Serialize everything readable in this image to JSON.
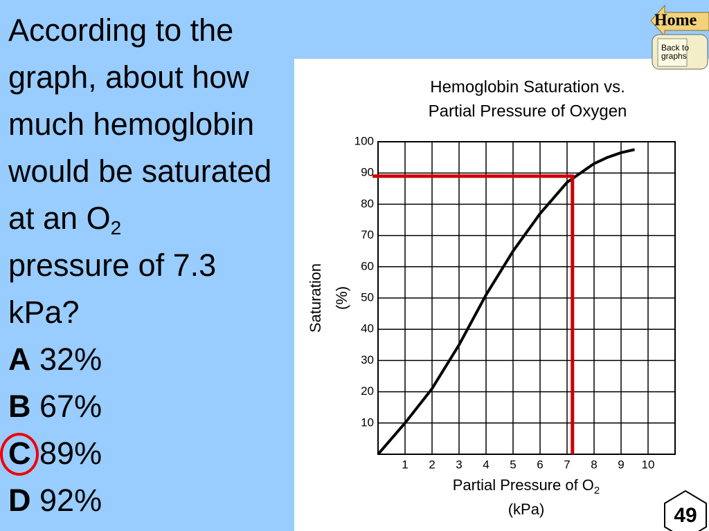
{
  "question": {
    "lines": [
      "According to the",
      "graph, about how",
      "much hemoglobin",
      "would be saturated",
      "at an O",
      "pressure of 7.3",
      "kPa?"
    ],
    "sub": "2"
  },
  "options": [
    {
      "letter": "A",
      "text": "32%"
    },
    {
      "letter": "B",
      "text": "67%"
    },
    {
      "letter": "C",
      "text": "89%"
    },
    {
      "letter": "D",
      "text": "92%"
    }
  ],
  "selected": 2,
  "nav": {
    "home": "Home",
    "back": "Back to graphs"
  },
  "slide_number": "49",
  "chart_data": {
    "type": "line",
    "title": [
      "Hemoglobin Saturation vs.",
      "Partial Pressure of Oxygen"
    ],
    "xlabel": {
      "text": "Partial Pressure of O",
      "sub": "2",
      "unit": "(kPa)"
    },
    "ylabel": [
      "Saturation",
      "(%)"
    ],
    "x": [
      0,
      1,
      2,
      3,
      4,
      5,
      6,
      7,
      7.5,
      8,
      8.5,
      9,
      9.5
    ],
    "values": [
      0,
      10,
      21,
      35,
      51,
      65,
      77,
      87,
      90,
      93,
      95,
      96.5,
      97.5
    ],
    "color": "#000000",
    "xlim": [
      0,
      11
    ],
    "xticks": [
      1,
      2,
      3,
      4,
      5,
      6,
      7,
      8,
      9,
      10
    ],
    "ylim": [
      0,
      100
    ],
    "yticks": [
      10,
      20,
      30,
      40,
      50,
      60,
      70,
      80,
      90,
      100
    ],
    "grid": true,
    "reference": {
      "x": 7.2,
      "y": 89,
      "color": "#cc0000"
    }
  }
}
